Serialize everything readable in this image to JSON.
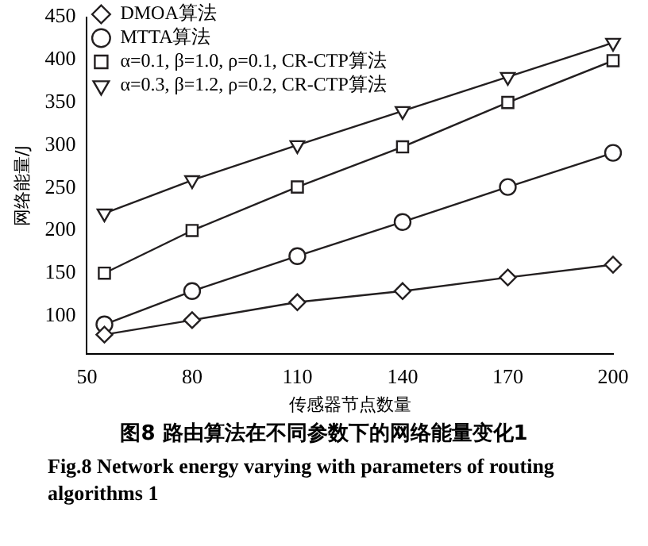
{
  "chart_data": {
    "type": "line",
    "title": "图8 路由算法在不同参数下的网络能量变化1",
    "annotations": [
      "Fig.8 Network energy varying with parameters of routing algorithms 1"
    ],
    "xlabel": "传感器节点数量",
    "ylabel": "网络能量/J",
    "x": [
      55,
      80,
      110,
      140,
      170,
      200
    ],
    "xlim": [
      50,
      200
    ],
    "xticks": [
      50,
      80,
      110,
      140,
      170,
      200
    ],
    "ylim": [
      55,
      450
    ],
    "yticks": [
      100,
      150,
      200,
      250,
      300,
      350,
      400,
      450
    ],
    "grid": false,
    "legend": "top left",
    "line_style": "solid",
    "series": [
      {
        "name": "DMOA算法",
        "color": "#231f20",
        "marker": "diamond",
        "values": [
          78,
          95,
          116,
          129,
          145,
          160
        ]
      },
      {
        "name": "MTTA算法",
        "color": "#231f20",
        "marker": "circle",
        "values": [
          90,
          129,
          170,
          210,
          251,
          291
        ]
      },
      {
        "name": "α=0.1, β=1.0, ρ=0.1, CR-CTP算法",
        "color": "#231f20",
        "marker": "square",
        "values": [
          150,
          200,
          251,
          298,
          350,
          399
        ]
      },
      {
        "name": "α=0.3, β=1.2, ρ=0.2, CR-CTP算法",
        "color": "#231f20",
        "marker": "triangle",
        "values": [
          220,
          259,
          300,
          340,
          380,
          420
        ]
      }
    ]
  }
}
